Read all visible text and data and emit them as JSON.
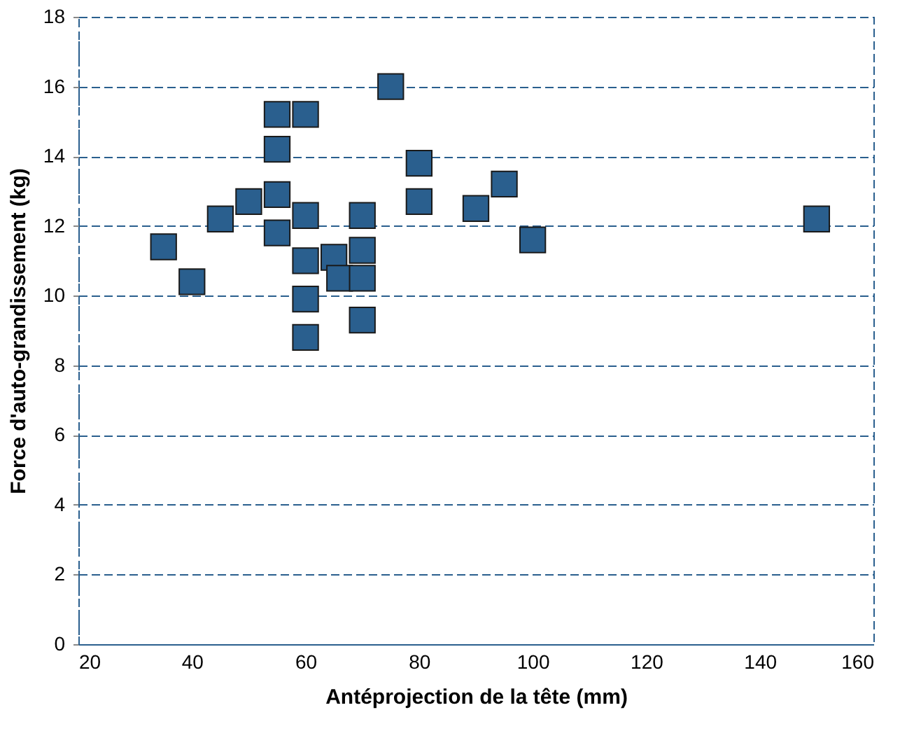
{
  "chart_data": {
    "type": "scatter",
    "xlabel": "Antéprojection de la tête (mm)",
    "ylabel": "Force d'auto-grandissement (kg)",
    "x": [
      75,
      55,
      60,
      55,
      80,
      80,
      90,
      95,
      100,
      150,
      45,
      50,
      55,
      60,
      70,
      55,
      35,
      40,
      60,
      65,
      70,
      66,
      70,
      60,
      70,
      60
    ],
    "series": [
      {
        "color": "#2a5f8e",
        "values": [
          16,
          15.2,
          15.2,
          14.2,
          13.8,
          12.7,
          12.5,
          13.2,
          11.6,
          12.2,
          12.2,
          12.7,
          12.9,
          12.3,
          12.3,
          11.8,
          11.4,
          10.4,
          11.0,
          11.1,
          11.3,
          10.5,
          10.5,
          9.9,
          9.3,
          8.8
        ]
      }
    ],
    "xlim": [
      20,
      160
    ],
    "xticks": [
      20,
      40,
      60,
      80,
      100,
      120,
      140,
      160
    ],
    "ylim": [
      0,
      18
    ],
    "yticks": [
      0,
      2,
      4,
      6,
      8,
      10,
      12,
      14,
      16,
      18
    ],
    "grid": "y",
    "marker": "square",
    "legend": false
  }
}
